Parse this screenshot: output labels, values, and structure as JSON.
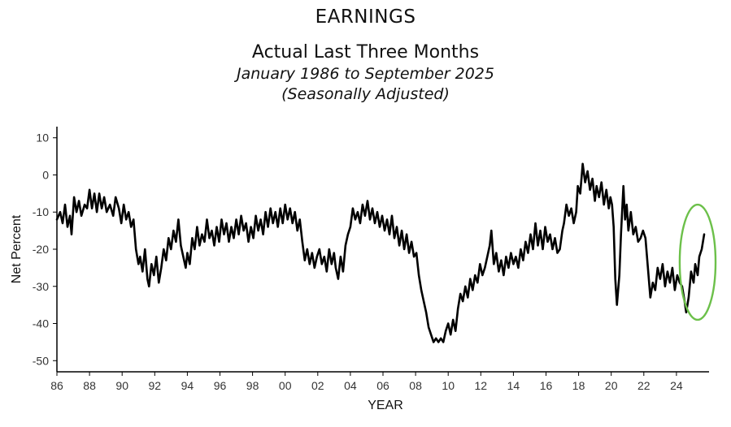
{
  "header": {
    "title": "EARNINGS",
    "subtitle": "Actual Last Three Months",
    "date_range": "January 1986 to September 2025",
    "note": "(Seasonally Adjusted)"
  },
  "colors": {
    "line": "#000000",
    "highlight": "#6cc04a",
    "axis": "#000000",
    "text": "#333333"
  },
  "chart_data": {
    "type": "line",
    "xlabel": "YEAR",
    "ylabel": "Net Percent",
    "xlim": [
      1986,
      2026
    ],
    "ylim": [
      -53,
      13
    ],
    "grid": false,
    "x_ticks": [
      {
        "value": 1986,
        "label": "86"
      },
      {
        "value": 1988,
        "label": "88"
      },
      {
        "value": 1990,
        "label": "90"
      },
      {
        "value": 1992,
        "label": "92"
      },
      {
        "value": 1994,
        "label": "94"
      },
      {
        "value": 1996,
        "label": "96"
      },
      {
        "value": 1998,
        "label": "98"
      },
      {
        "value": 2000,
        "label": "00"
      },
      {
        "value": 2002,
        "label": "02"
      },
      {
        "value": 2004,
        "label": "04"
      },
      {
        "value": 2006,
        "label": "06"
      },
      {
        "value": 2008,
        "label": "08"
      },
      {
        "value": 2010,
        "label": "10"
      },
      {
        "value": 2012,
        "label": "12"
      },
      {
        "value": 2014,
        "label": "14"
      },
      {
        "value": 2016,
        "label": "16"
      },
      {
        "value": 2018,
        "label": "18"
      },
      {
        "value": 2020,
        "label": "20"
      },
      {
        "value": 2022,
        "label": "22"
      },
      {
        "value": 2024,
        "label": "24"
      }
    ],
    "y_ticks": [
      10,
      0,
      -10,
      -20,
      -30,
      -40,
      -50
    ],
    "series": [
      {
        "values": [
          [
            1986.0,
            -12
          ],
          [
            1986.2,
            -10
          ],
          [
            1986.35,
            -13
          ],
          [
            1986.5,
            -8
          ],
          [
            1986.65,
            -14
          ],
          [
            1986.8,
            -11
          ],
          [
            1986.9,
            -16
          ],
          [
            1987.05,
            -6
          ],
          [
            1987.2,
            -10
          ],
          [
            1987.35,
            -7
          ],
          [
            1987.5,
            -11
          ],
          [
            1987.7,
            -8
          ],
          [
            1987.85,
            -9
          ],
          [
            1988.0,
            -4
          ],
          [
            1988.15,
            -9
          ],
          [
            1988.3,
            -5
          ],
          [
            1988.45,
            -10
          ],
          [
            1988.6,
            -5
          ],
          [
            1988.75,
            -9
          ],
          [
            1988.9,
            -6
          ],
          [
            1989.05,
            -10
          ],
          [
            1989.25,
            -8
          ],
          [
            1989.45,
            -11
          ],
          [
            1989.6,
            -6
          ],
          [
            1989.8,
            -9
          ],
          [
            1989.95,
            -13
          ],
          [
            1990.1,
            -8
          ],
          [
            1990.25,
            -12
          ],
          [
            1990.4,
            -10
          ],
          [
            1990.55,
            -14
          ],
          [
            1990.7,
            -12
          ],
          [
            1990.85,
            -20
          ],
          [
            1991.0,
            -24
          ],
          [
            1991.1,
            -22
          ],
          [
            1991.25,
            -26
          ],
          [
            1991.4,
            -20
          ],
          [
            1991.55,
            -28
          ],
          [
            1991.65,
            -30
          ],
          [
            1991.8,
            -24
          ],
          [
            1991.95,
            -27
          ],
          [
            1992.1,
            -22
          ],
          [
            1992.25,
            -29
          ],
          [
            1992.4,
            -25
          ],
          [
            1992.55,
            -20
          ],
          [
            1992.7,
            -23
          ],
          [
            1992.85,
            -17
          ],
          [
            1993.0,
            -20
          ],
          [
            1993.15,
            -15
          ],
          [
            1993.3,
            -18
          ],
          [
            1993.45,
            -12
          ],
          [
            1993.6,
            -19
          ],
          [
            1993.75,
            -22
          ],
          [
            1993.9,
            -25
          ],
          [
            1994.0,
            -21
          ],
          [
            1994.15,
            -24
          ],
          [
            1994.3,
            -17
          ],
          [
            1994.45,
            -20
          ],
          [
            1994.6,
            -14
          ],
          [
            1994.75,
            -19
          ],
          [
            1994.9,
            -16
          ],
          [
            1995.05,
            -18
          ],
          [
            1995.2,
            -12
          ],
          [
            1995.35,
            -17
          ],
          [
            1995.5,
            -15
          ],
          [
            1995.65,
            -19
          ],
          [
            1995.8,
            -14
          ],
          [
            1995.95,
            -18
          ],
          [
            1996.1,
            -12
          ],
          [
            1996.25,
            -16
          ],
          [
            1996.4,
            -13
          ],
          [
            1996.55,
            -18
          ],
          [
            1996.7,
            -14
          ],
          [
            1996.85,
            -17
          ],
          [
            1997.0,
            -12
          ],
          [
            1997.15,
            -16
          ],
          [
            1997.3,
            -11
          ],
          [
            1997.45,
            -15
          ],
          [
            1997.6,
            -13
          ],
          [
            1997.75,
            -18
          ],
          [
            1997.9,
            -14
          ],
          [
            1998.05,
            -17
          ],
          [
            1998.2,
            -11
          ],
          [
            1998.35,
            -15
          ],
          [
            1998.5,
            -12
          ],
          [
            1998.65,
            -16
          ],
          [
            1998.8,
            -10
          ],
          [
            1998.95,
            -14
          ],
          [
            1999.1,
            -9
          ],
          [
            1999.25,
            -13
          ],
          [
            1999.4,
            -10
          ],
          [
            1999.55,
            -14
          ],
          [
            1999.7,
            -9
          ],
          [
            1999.85,
            -13
          ],
          [
            2000.0,
            -8
          ],
          [
            2000.15,
            -12
          ],
          [
            2000.3,
            -9
          ],
          [
            2000.45,
            -13
          ],
          [
            2000.6,
            -10
          ],
          [
            2000.75,
            -15
          ],
          [
            2000.9,
            -12
          ],
          [
            2001.05,
            -18
          ],
          [
            2001.2,
            -23
          ],
          [
            2001.35,
            -20
          ],
          [
            2001.5,
            -24
          ],
          [
            2001.65,
            -21
          ],
          [
            2001.8,
            -25
          ],
          [
            2001.95,
            -22
          ],
          [
            2002.1,
            -20
          ],
          [
            2002.25,
            -24
          ],
          [
            2002.4,
            -22
          ],
          [
            2002.55,
            -26
          ],
          [
            2002.7,
            -20
          ],
          [
            2002.85,
            -24
          ],
          [
            2003.0,
            -21
          ],
          [
            2003.1,
            -25
          ],
          [
            2003.25,
            -28
          ],
          [
            2003.4,
            -22
          ],
          [
            2003.55,
            -26
          ],
          [
            2003.7,
            -19
          ],
          [
            2003.85,
            -16
          ],
          [
            2004.0,
            -14
          ],
          [
            2004.15,
            -9
          ],
          [
            2004.3,
            -12
          ],
          [
            2004.45,
            -10
          ],
          [
            2004.6,
            -13
          ],
          [
            2004.75,
            -8
          ],
          [
            2004.9,
            -11
          ],
          [
            2005.05,
            -7
          ],
          [
            2005.2,
            -12
          ],
          [
            2005.35,
            -9
          ],
          [
            2005.5,
            -13
          ],
          [
            2005.65,
            -10
          ],
          [
            2005.8,
            -14
          ],
          [
            2005.95,
            -11
          ],
          [
            2006.1,
            -15
          ],
          [
            2006.25,
            -12
          ],
          [
            2006.4,
            -16
          ],
          [
            2006.55,
            -11
          ],
          [
            2006.7,
            -17
          ],
          [
            2006.85,
            -14
          ],
          [
            2007.0,
            -19
          ],
          [
            2007.15,
            -15
          ],
          [
            2007.3,
            -20
          ],
          [
            2007.45,
            -16
          ],
          [
            2007.6,
            -21
          ],
          [
            2007.75,
            -18
          ],
          [
            2007.9,
            -22
          ],
          [
            2008.05,
            -21
          ],
          [
            2008.2,
            -27
          ],
          [
            2008.35,
            -31
          ],
          [
            2008.5,
            -34
          ],
          [
            2008.65,
            -37
          ],
          [
            2008.8,
            -41
          ],
          [
            2008.95,
            -43
          ],
          [
            2009.1,
            -45
          ],
          [
            2009.25,
            -44
          ],
          [
            2009.4,
            -45
          ],
          [
            2009.55,
            -44
          ],
          [
            2009.7,
            -45
          ],
          [
            2009.85,
            -42
          ],
          [
            2010.0,
            -40
          ],
          [
            2010.15,
            -43
          ],
          [
            2010.3,
            -39
          ],
          [
            2010.45,
            -42
          ],
          [
            2010.6,
            -36
          ],
          [
            2010.75,
            -32
          ],
          [
            2010.9,
            -34
          ],
          [
            2011.05,
            -30
          ],
          [
            2011.2,
            -33
          ],
          [
            2011.35,
            -28
          ],
          [
            2011.5,
            -31
          ],
          [
            2011.65,
            -27
          ],
          [
            2011.8,
            -29
          ],
          [
            2011.95,
            -24
          ],
          [
            2012.1,
            -27
          ],
          [
            2012.25,
            -25
          ],
          [
            2012.4,
            -22
          ],
          [
            2012.55,
            -19
          ],
          [
            2012.65,
            -15
          ],
          [
            2012.8,
            -24
          ],
          [
            2012.95,
            -21
          ],
          [
            2013.1,
            -26
          ],
          [
            2013.25,
            -23
          ],
          [
            2013.4,
            -27
          ],
          [
            2013.55,
            -22
          ],
          [
            2013.7,
            -25
          ],
          [
            2013.85,
            -21
          ],
          [
            2014.0,
            -24
          ],
          [
            2014.15,
            -22
          ],
          [
            2014.3,
            -25
          ],
          [
            2014.45,
            -20
          ],
          [
            2014.6,
            -23
          ],
          [
            2014.75,
            -18
          ],
          [
            2014.9,
            -21
          ],
          [
            2015.05,
            -16
          ],
          [
            2015.2,
            -20
          ],
          [
            2015.35,
            -13
          ],
          [
            2015.5,
            -19
          ],
          [
            2015.65,
            -15
          ],
          [
            2015.8,
            -20
          ],
          [
            2015.95,
            -14
          ],
          [
            2016.1,
            -18
          ],
          [
            2016.25,
            -16
          ],
          [
            2016.4,
            -20
          ],
          [
            2016.55,
            -17
          ],
          [
            2016.7,
            -21
          ],
          [
            2016.85,
            -20
          ],
          [
            2017.0,
            -15
          ],
          [
            2017.1,
            -13
          ],
          [
            2017.25,
            -8
          ],
          [
            2017.4,
            -11
          ],
          [
            2017.55,
            -9
          ],
          [
            2017.7,
            -13
          ],
          [
            2017.85,
            -10
          ],
          [
            2017.95,
            -3
          ],
          [
            2018.1,
            -5
          ],
          [
            2018.25,
            3
          ],
          [
            2018.4,
            -2
          ],
          [
            2018.55,
            1
          ],
          [
            2018.7,
            -4
          ],
          [
            2018.85,
            -1
          ],
          [
            2019.0,
            -7
          ],
          [
            2019.1,
            -3
          ],
          [
            2019.25,
            -6
          ],
          [
            2019.4,
            -2
          ],
          [
            2019.55,
            -8
          ],
          [
            2019.7,
            -4
          ],
          [
            2019.85,
            -9
          ],
          [
            2019.95,
            -6
          ],
          [
            2020.05,
            -8
          ],
          [
            2020.15,
            -14
          ],
          [
            2020.25,
            -28
          ],
          [
            2020.35,
            -35
          ],
          [
            2020.5,
            -27
          ],
          [
            2020.6,
            -16
          ],
          [
            2020.75,
            -3
          ],
          [
            2020.85,
            -12
          ],
          [
            2020.95,
            -8
          ],
          [
            2021.05,
            -15
          ],
          [
            2021.2,
            -10
          ],
          [
            2021.35,
            -16
          ],
          [
            2021.5,
            -14
          ],
          [
            2021.65,
            -18
          ],
          [
            2021.8,
            -17
          ],
          [
            2021.95,
            -15
          ],
          [
            2022.1,
            -17
          ],
          [
            2022.25,
            -25
          ],
          [
            2022.4,
            -33
          ],
          [
            2022.55,
            -29
          ],
          [
            2022.7,
            -31
          ],
          [
            2022.85,
            -25
          ],
          [
            2023.0,
            -28
          ],
          [
            2023.15,
            -24
          ],
          [
            2023.3,
            -30
          ],
          [
            2023.45,
            -26
          ],
          [
            2023.6,
            -29
          ],
          [
            2023.75,
            -25
          ],
          [
            2023.9,
            -31
          ],
          [
            2024.05,
            -27
          ],
          [
            2024.2,
            -29
          ],
          [
            2024.35,
            -30
          ],
          [
            2024.5,
            -34
          ],
          [
            2024.6,
            -37
          ],
          [
            2024.75,
            -33
          ],
          [
            2024.9,
            -26
          ],
          [
            2025.05,
            -29
          ],
          [
            2025.15,
            -24
          ],
          [
            2025.3,
            -27
          ],
          [
            2025.4,
            -22
          ],
          [
            2025.55,
            -20
          ],
          [
            2025.7,
            -16
          ]
        ]
      }
    ],
    "highlight": {
      "shape": "ellipse",
      "color": "#6cc04a",
      "cx": 2025.3,
      "cy": -23.5,
      "rx": 1.1,
      "ry": 15.5
    }
  }
}
